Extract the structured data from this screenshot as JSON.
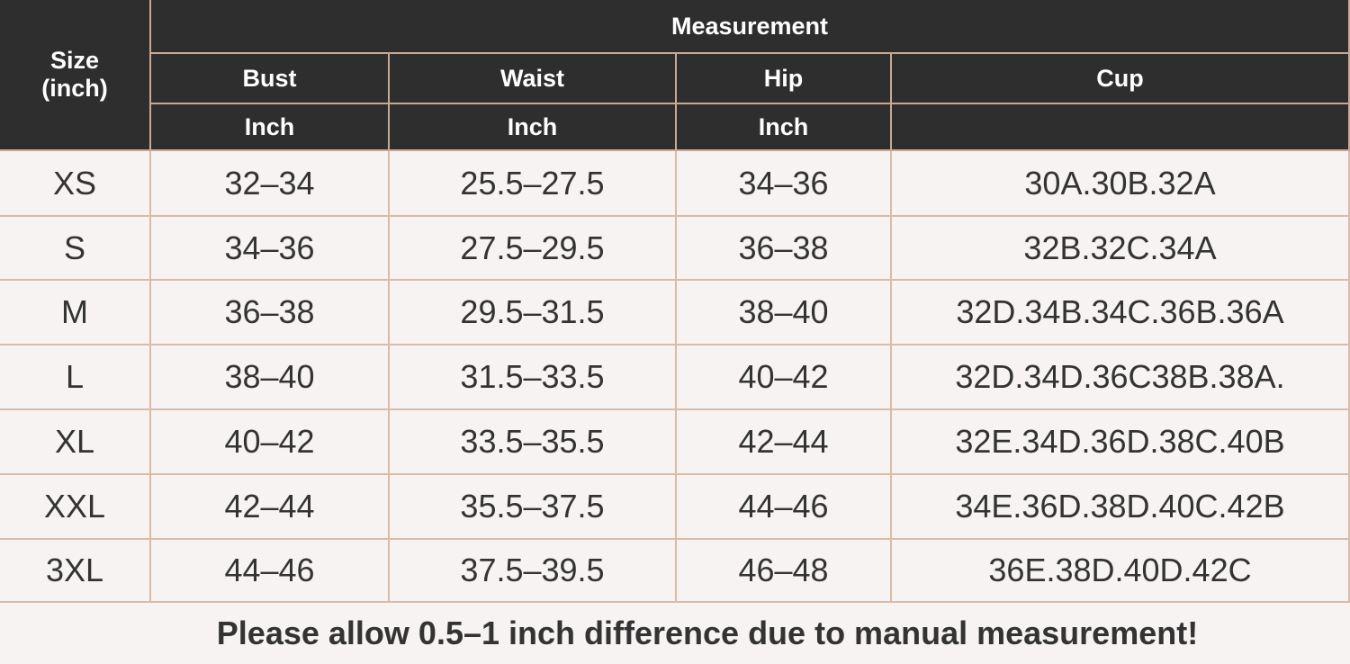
{
  "header": {
    "size_label": [
      "Size",
      "(inch)"
    ],
    "group": "Measurement",
    "columns": [
      {
        "name": "Bust",
        "unit": "Inch"
      },
      {
        "name": "Waist",
        "unit": "Inch"
      },
      {
        "name": "Hip",
        "unit": "Inch"
      },
      {
        "name": "Cup"
      }
    ]
  },
  "table": {
    "rows": [
      [
        "XS",
        "32–34",
        "25.5–27.5",
        "34–36",
        "30A.30B.32A"
      ],
      [
        "S",
        "34–36",
        "27.5–29.5",
        "36–38",
        "32B.32C.34A"
      ],
      [
        "M",
        "36–38",
        "29.5–31.5",
        "38–40",
        "32D.34B.34C.36B.36A"
      ],
      [
        "L",
        "38–40",
        "31.5–33.5",
        "40–42",
        "32D.34D.36C38B.38A."
      ],
      [
        "XL",
        "40–42",
        "33.5–35.5",
        "42–44",
        "32E.34D.36D.38C.40B"
      ],
      [
        "XXL",
        "42–44",
        "35.5–37.5",
        "44–46",
        "34E.36D.38D.40C.42B"
      ],
      [
        "3XL",
        "44–46",
        "37.5–39.5",
        "46–48",
        "36E.38D.40D.42C"
      ]
    ]
  },
  "note": "Please allow 0.5–1 inch difference due to manual measurement!"
}
